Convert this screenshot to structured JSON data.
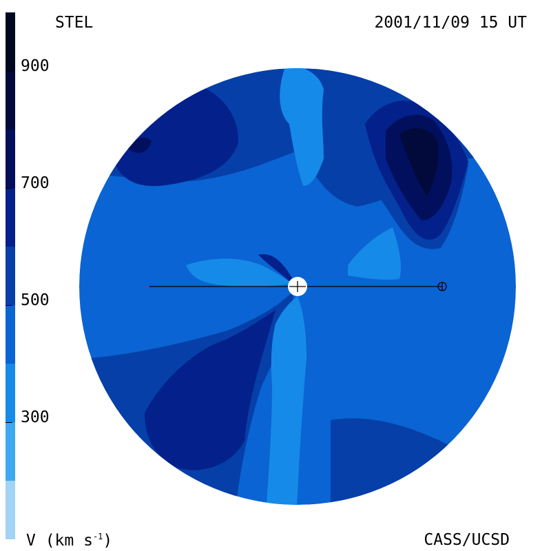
{
  "header": {
    "source": "STEL",
    "timestamp": "2001/11/09 15 UT"
  },
  "footer": {
    "units_base": "V (km s",
    "units_exp": "-1",
    "units_close": ")",
    "credit": "CASS/UCSD"
  },
  "colorbar": {
    "levels": [
      {
        "from": 100,
        "to": 200,
        "color": "#a3d3f5"
      },
      {
        "from": 200,
        "to": 300,
        "color": "#3fa9f0"
      },
      {
        "from": 300,
        "to": 400,
        "color": "#168ae8"
      },
      {
        "from": 400,
        "to": 500,
        "color": "#0a64d3"
      },
      {
        "from": 500,
        "to": 600,
        "color": "#063fa8"
      },
      {
        "from": 600,
        "to": 700,
        "color": "#04208a"
      },
      {
        "from": 700,
        "to": 800,
        "color": "#020f5c"
      },
      {
        "from": 800,
        "to": 900,
        "color": "#010a3a"
      },
      {
        "from": 900,
        "to": 1000,
        "color": "#000720"
      }
    ],
    "ticks": [
      {
        "value": 900,
        "label": "900"
      },
      {
        "value": 700,
        "label": "700"
      },
      {
        "value": 500,
        "label": "500"
      },
      {
        "value": 300,
        "label": "300"
      }
    ],
    "range": [
      100,
      1000
    ]
  },
  "map": {
    "background_color": "#0a64d3",
    "markers": [
      "sun-marker",
      "earth-marker"
    ]
  }
}
